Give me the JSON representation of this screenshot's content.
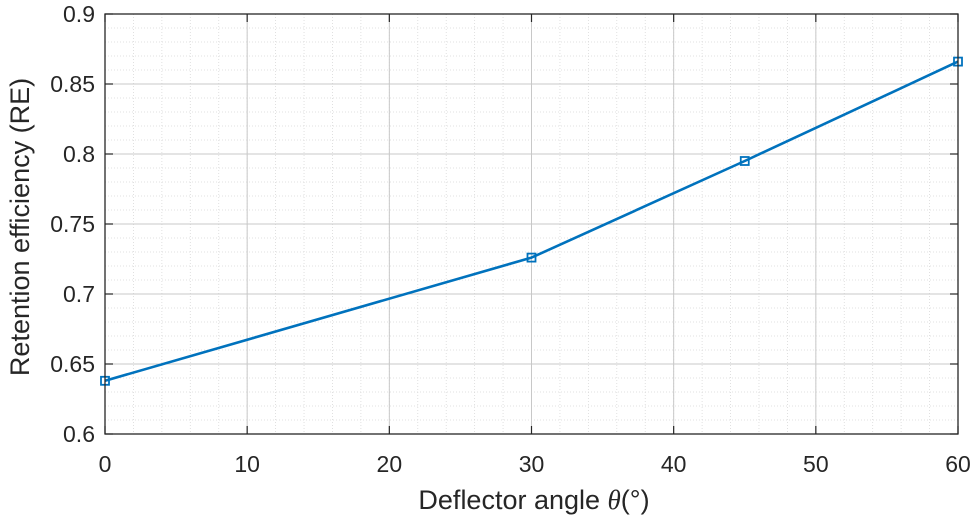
{
  "chart_data": {
    "type": "line",
    "title": "",
    "xlabel_prefix": "Deflector angle ",
    "xlabel_symbol": "θ",
    "xlabel_suffix": "(°)",
    "ylabel": "Retention efficiency (RE)",
    "xlim": [
      0,
      60
    ],
    "ylim": [
      0.6,
      0.9
    ],
    "xticks": [
      0,
      10,
      20,
      30,
      40,
      50,
      60
    ],
    "xtick_labels": [
      "0",
      "10",
      "20",
      "30",
      "40",
      "50",
      "60"
    ],
    "yticks": [
      0.6,
      0.65,
      0.7,
      0.75,
      0.8,
      0.85,
      0.9
    ],
    "ytick_labels": [
      "0.6",
      "0.65",
      "0.7",
      "0.75",
      "0.8",
      "0.85",
      "0.9"
    ],
    "grid": true,
    "minor_grid": true,
    "series": [
      {
        "name": "RE",
        "color": "#0072BD",
        "marker": "square",
        "x": [
          0,
          30,
          45,
          60
        ],
        "y": [
          0.638,
          0.726,
          0.795,
          0.866
        ]
      }
    ]
  }
}
